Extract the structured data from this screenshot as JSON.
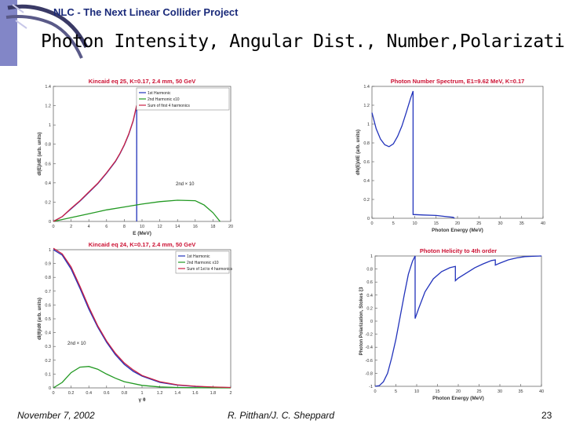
{
  "header": {
    "project": "NLC - The Next Linear Collider Project",
    "title": "Photon Intensity, Angular Dist., Number,Polarization"
  },
  "footer": {
    "date": "November 7, 2002",
    "authors": "R. Pitthan/J. C. Sheppard",
    "page": "23"
  },
  "chart_data": [
    {
      "id": "intensity",
      "type": "line",
      "title": "Kincaid eq 25, K=0.17, 2.4 mm, 50 GeV",
      "xlabel": "E (MeV)",
      "ylabel": "dI(E)/dE (arb. units)",
      "xlim": [
        0,
        20
      ],
      "ylim": [
        0,
        1.4
      ],
      "xticks": [
        0,
        2,
        4,
        6,
        8,
        10,
        12,
        14,
        16,
        18,
        20
      ],
      "yticks": [
        0,
        0.2,
        0.4,
        0.6,
        0.8,
        1,
        1.2,
        1.4
      ],
      "legend": [
        "1st Harmonic",
        "2nd Harmonic x10",
        "Sum of first 4 harmonics"
      ],
      "annotation": "2nd × 10",
      "series": [
        {
          "name": "1st Harmonic",
          "color": "#2233bb",
          "x": [
            0,
            1,
            2,
            3,
            4,
            5,
            6,
            7,
            7.5,
            8,
            8.5,
            9,
            9.4,
            9.4
          ],
          "y": [
            0,
            0.05,
            0.13,
            0.21,
            0.3,
            0.39,
            0.5,
            0.62,
            0.7,
            0.79,
            0.9,
            1.04,
            1.2,
            0
          ]
        },
        {
          "name": "2nd Harmonic x10",
          "color": "#229922",
          "x": [
            0,
            2,
            4,
            6,
            8,
            10,
            12,
            14,
            16,
            17,
            18,
            18.8
          ],
          "y": [
            0,
            0.04,
            0.08,
            0.12,
            0.15,
            0.18,
            0.205,
            0.22,
            0.215,
            0.17,
            0.09,
            0
          ]
        },
        {
          "name": "Sum of first 4 harmonics",
          "color": "#cc2244",
          "x": [
            0,
            1,
            2,
            3,
            4,
            5,
            6,
            7,
            7.5,
            8,
            8.5,
            9,
            9.4
          ],
          "y": [
            0,
            0.05,
            0.135,
            0.215,
            0.305,
            0.395,
            0.505,
            0.625,
            0.705,
            0.795,
            0.905,
            1.045,
            1.205
          ]
        }
      ]
    },
    {
      "id": "number",
      "type": "line",
      "title": "Photon Number Spectrum, E1=9.62 MeV, K=0.17",
      "xlabel": "Photon Energy (MeV)",
      "ylabel": "dN(E)/dE (arb. units)",
      "xlim": [
        0,
        40
      ],
      "ylim": [
        0,
        1.4
      ],
      "xticks": [
        0,
        5,
        10,
        15,
        20,
        25,
        30,
        35,
        40
      ],
      "yticks": [
        0,
        0.2,
        0.4,
        0.6,
        0.8,
        1,
        1.2,
        1.4
      ],
      "series": [
        {
          "name": "Photon number",
          "color": "#2233bb",
          "x": [
            0,
            1,
            2,
            3,
            4,
            5,
            6,
            7,
            8,
            9,
            9.62,
            9.62,
            12,
            15,
            17,
            19,
            19.3
          ],
          "y": [
            1.12,
            0.95,
            0.84,
            0.78,
            0.76,
            0.79,
            0.87,
            0.98,
            1.12,
            1.27,
            1.35,
            0.04,
            0.035,
            0.03,
            0.02,
            0.01,
            0
          ]
        }
      ]
    },
    {
      "id": "angular",
      "type": "line",
      "title": "Kincaid eq 24, K=0.17, 2.4 mm, 50 GeV",
      "xlabel": "γ θ",
      "ylabel": "dI(θ)/dθ (arb. units)",
      "xlim": [
        0,
        2
      ],
      "ylim": [
        0,
        1
      ],
      "xticks": [
        0,
        0.2,
        0.4,
        0.6,
        0.8,
        1,
        1.2,
        1.4,
        1.6,
        1.8,
        2
      ],
      "yticks": [
        0,
        0.1,
        0.2,
        0.3,
        0.4,
        0.5,
        0.6,
        0.7,
        0.8,
        0.9,
        1
      ],
      "legend": [
        "1st Harmonic",
        "2nd Harmonic x10",
        "Sum of 1st to 4 harmonics"
      ],
      "annotation": "2nd × 10",
      "series": [
        {
          "name": "1st Harmonic",
          "color": "#2233bb",
          "x": [
            0,
            0.1,
            0.2,
            0.3,
            0.4,
            0.5,
            0.6,
            0.7,
            0.8,
            0.9,
            1,
            1.2,
            1.4,
            1.6,
            1.8,
            2
          ],
          "y": [
            1,
            0.96,
            0.86,
            0.72,
            0.57,
            0.44,
            0.33,
            0.24,
            0.17,
            0.12,
            0.085,
            0.04,
            0.02,
            0.01,
            0.005,
            0.002
          ]
        },
        {
          "name": "2nd Harmonic x10",
          "color": "#229922",
          "x": [
            0,
            0.1,
            0.2,
            0.3,
            0.4,
            0.5,
            0.6,
            0.7,
            0.8,
            1,
            1.2,
            1.4,
            1.6,
            2
          ],
          "y": [
            0,
            0.04,
            0.11,
            0.15,
            0.155,
            0.135,
            0.1,
            0.07,
            0.045,
            0.018,
            0.007,
            0.003,
            0.001,
            0
          ]
        },
        {
          "name": "Sum of 1st to 4 harmonics",
          "color": "#cc2244",
          "x": [
            0,
            0.1,
            0.2,
            0.3,
            0.4,
            0.5,
            0.6,
            0.7,
            0.8,
            0.9,
            1,
            1.2,
            1.4,
            1.6,
            1.8,
            2
          ],
          "y": [
            1.01,
            0.97,
            0.875,
            0.735,
            0.585,
            0.45,
            0.34,
            0.25,
            0.18,
            0.13,
            0.09,
            0.045,
            0.022,
            0.012,
            0.006,
            0.003
          ]
        }
      ]
    },
    {
      "id": "helicity",
      "type": "line",
      "title": "Photon Helicity to 4th order",
      "xlabel": "Photon Energy (MeV)",
      "ylabel": "Photon Polarization, Stokes ξ3",
      "xlim": [
        0,
        40
      ],
      "ylim": [
        -1,
        1
      ],
      "xticks": [
        0,
        5,
        10,
        15,
        20,
        25,
        30,
        35,
        40
      ],
      "yticks": [
        -1,
        -0.8,
        -0.6,
        -0.4,
        -0.2,
        0,
        0.2,
        0.4,
        0.6,
        0.8,
        1
      ],
      "series": [
        {
          "name": "Helicity",
          "color": "#2233bb",
          "x": [
            0,
            1,
            2,
            3,
            4,
            5,
            6,
            7,
            8,
            9,
            9.62,
            9.62,
            10.5,
            12,
            14,
            16,
            18,
            19.3,
            19.3,
            20,
            22,
            24,
            26,
            28,
            28.9,
            28.9,
            30,
            32,
            34,
            36,
            38,
            40
          ],
          "y": [
            -1,
            -0.99,
            -0.93,
            -0.8,
            -0.56,
            -0.28,
            0.06,
            0.4,
            0.72,
            0.92,
            1,
            0.04,
            0.2,
            0.45,
            0.65,
            0.76,
            0.82,
            0.84,
            0.62,
            0.66,
            0.74,
            0.82,
            0.88,
            0.93,
            0.94,
            0.86,
            0.89,
            0.94,
            0.97,
            0.99,
            0.995,
            1
          ]
        }
      ]
    }
  ]
}
